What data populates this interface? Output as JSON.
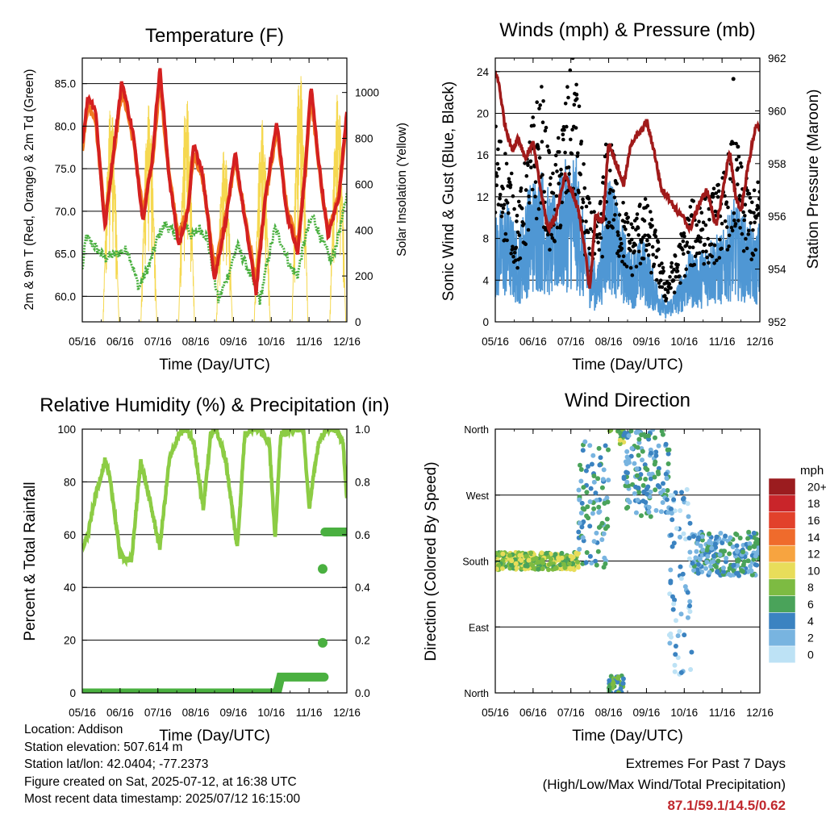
{
  "panels": {
    "temperature": {
      "title": "Temperature (F)",
      "ylabel_left": "2m & 9m T (Red, Orange) & 2m Td (Green)",
      "ylabel_right": "Solar Insolation (Yellow)",
      "xlabel": "Time (Day/UTC)",
      "yticks_left": [
        "60.0",
        "65.0",
        "70.0",
        "75.0",
        "80.0",
        "85.0"
      ],
      "yticks_right": [
        "0",
        "200",
        "400",
        "600",
        "800",
        "1000"
      ]
    },
    "winds": {
      "title": "Winds (mph) & Pressure (mb)",
      "ylabel_left": "Sonic Wind & Gust (Blue, Black)",
      "ylabel_right": "Station Pressure (Maroon)",
      "xlabel": "Time (Day/UTC)",
      "yticks_left": [
        "0",
        "4",
        "8",
        "12",
        "16",
        "20",
        "24"
      ],
      "yticks_right": [
        "952",
        "954",
        "956",
        "958",
        "960",
        "962"
      ]
    },
    "humidity": {
      "title": "Relative Humidity (%) & Precipitation (in)",
      "ylabel_left": "Percent & Total Rainfall",
      "xlabel": "Time (Day/UTC)",
      "yticks_left": [
        "0",
        "20",
        "40",
        "60",
        "80",
        "100"
      ],
      "yticks_right": [
        "0.0",
        "0.2",
        "0.4",
        "0.6",
        "0.8",
        "1.0"
      ]
    },
    "direction": {
      "title": "Wind Direction",
      "ylabel_left": "Direction (Colored By Speed)",
      "xlabel": "Time (Day/UTC)",
      "yticks_left": [
        "North",
        "East",
        "South",
        "West",
        "North"
      ],
      "legend_title": "mph",
      "legend_labels": [
        "20+",
        "18",
        "16",
        "14",
        "12",
        "10",
        "8",
        "6",
        "4",
        "2",
        "0"
      ],
      "legend_colors": [
        "#9b1c1f",
        "#c9252a",
        "#e2412b",
        "#ef6b2c",
        "#f7a440",
        "#e8dd5a",
        "#7dbb42",
        "#4aa35a",
        "#3b83c1",
        "#78b4e0",
        "#bde2f5"
      ]
    }
  },
  "xticks": [
    "05/16",
    "06/16",
    "07/16",
    "08/16",
    "09/16",
    "10/16",
    "11/16",
    "12/16"
  ],
  "colors": {
    "temp2m": "#d42020",
    "temp9m": "#f07a20",
    "dewpoint": "#4ab040",
    "solar": "#f5d850",
    "wind": "#4f97d4",
    "gust": "#000000",
    "pressure": "#a01a1a",
    "rh": "#8ccc44",
    "precip": "#4ab040",
    "extremes": "#c0282d"
  },
  "footer": {
    "location": "Location: Addison",
    "elevation": "Station elevation: 507.614 m",
    "latlon": "Station lat/lon: 42.0404; -77.2373",
    "created": "Figure created on Sat, 2025-07-12, at 16:38 UTC",
    "recent": "Most recent data timestamp: 2025/07/12 16:15:00",
    "extremes_title": "Extremes For Past 7 Days",
    "extremes_subtitle": "(High/Low/Max Wind/Total Precipitation)",
    "extremes_values": "87.1/59.1/14.5/0.62"
  },
  "chart_data": [
    {
      "type": "line",
      "title": "Temperature (F)",
      "xlabel": "Time (Day/UTC)",
      "x": [
        "05/16",
        "06/16",
        "07/16",
        "08/16",
        "09/16",
        "10/16",
        "11/16",
        "12/16"
      ],
      "ylim": [
        57.0,
        88.0
      ],
      "ylim_right": [
        0,
        1150
      ],
      "series": [
        {
          "name": "2m T",
          "axis": "left",
          "x": [
            0,
            0.15,
            0.35,
            0.6,
            0.85,
            1.05,
            1.35,
            1.6,
            1.85,
            2.05,
            2.3,
            2.55,
            2.8,
            2.95,
            3.2,
            3.5,
            3.8,
            4.05,
            4.3,
            4.6,
            4.85,
            5.15,
            5.4,
            5.7,
            5.9,
            6.05,
            6.25,
            6.5,
            6.8,
            7.0
          ],
          "values": [
            78,
            83.5,
            82,
            68,
            78,
            85.3,
            79,
            69,
            76,
            87,
            74,
            66,
            70,
            78,
            74,
            62,
            69,
            76.8,
            69,
            60.5,
            72,
            80.5,
            70,
            65,
            75,
            84.8,
            76,
            67,
            72,
            82
          ]
        },
        {
          "name": "9m T",
          "axis": "left",
          "x": [
            0,
            0.15,
            0.35,
            0.6,
            0.85,
            1.05,
            1.35,
            1.6,
            1.85,
            2.05,
            2.3,
            2.55,
            2.8,
            2.95,
            3.2,
            3.5,
            3.8,
            4.05,
            4.3,
            4.6,
            4.85,
            5.15,
            5.4,
            5.7,
            5.9,
            6.05,
            6.25,
            6.5,
            6.8,
            7.0
          ],
          "values": [
            77.5,
            82.5,
            81,
            69,
            77.5,
            84.5,
            78.5,
            70,
            75.5,
            85.5,
            74,
            67,
            70.5,
            77,
            73.5,
            63,
            69.5,
            76,
            69.5,
            61.5,
            71.5,
            79.5,
            70.5,
            66,
            74.5,
            84,
            75.5,
            67.5,
            72,
            81
          ]
        },
        {
          "name": "2m Td",
          "axis": "left",
          "x": [
            0,
            0.1,
            0.3,
            0.6,
            0.9,
            1.2,
            1.5,
            1.8,
            2.0,
            2.2,
            2.5,
            2.7,
            2.9,
            3.1,
            3.3,
            3.6,
            3.9,
            4.1,
            4.4,
            4.7,
            4.9,
            5.1,
            5.3,
            5.5,
            5.7,
            5.9,
            6.1,
            6.3,
            6.6,
            6.9,
            7.0
          ],
          "values": [
            63,
            67,
            66,
            64.5,
            65,
            65.5,
            61,
            64,
            67,
            68.5,
            67,
            69,
            67,
            68,
            67,
            59.5,
            63,
            66,
            63,
            59.5,
            64,
            68,
            66,
            63.5,
            62.5,
            67,
            69.5,
            67,
            64,
            69.5,
            72
          ]
        },
        {
          "name": "Solar Insolation",
          "axis": "right",
          "days": 7,
          "peaks": [
            950,
            950,
            980,
            760,
            880,
            1100,
            1000
          ]
        }
      ]
    },
    {
      "type": "line",
      "title": "Winds (mph) & Pressure (mb)",
      "xlabel": "Time (Day/UTC)",
      "x": [
        "05/16",
        "06/16",
        "07/16",
        "08/16",
        "09/16",
        "10/16",
        "11/16",
        "12/16"
      ],
      "ylim": [
        0,
        25.3
      ],
      "ylim_right": [
        952,
        962
      ],
      "series": [
        {
          "name": "Station Pressure",
          "axis": "right",
          "x": [
            0,
            0.1,
            0.25,
            0.45,
            0.6,
            0.8,
            1.0,
            1.2,
            1.4,
            1.6,
            1.85,
            2.0,
            2.2,
            2.35,
            2.5,
            2.65,
            2.85,
            3.0,
            3.2,
            3.4,
            3.6,
            3.85,
            4.0,
            4.2,
            4.4,
            4.55,
            4.8,
            4.95,
            5.15,
            5.4,
            5.6,
            5.85,
            6.05,
            6.2,
            6.35,
            6.5,
            6.7,
            6.9,
            7.0
          ],
          "values": [
            961.5,
            961,
            959.5,
            958.5,
            959,
            958.2,
            958.8,
            957,
            955.5,
            956,
            957.6,
            957,
            956.2,
            955,
            953.2,
            956,
            955.8,
            958.8,
            958,
            957.2,
            958.8,
            959.2,
            959.6,
            958.5,
            957,
            956.8,
            956.2,
            956,
            955.5,
            956.5,
            957,
            955.6,
            957.2,
            958.5,
            956.8,
            956.2,
            958,
            959.5,
            959.2
          ]
        },
        {
          "name": "Sonic Wind",
          "axis": "left",
          "x": [
            0,
            0.3,
            0.6,
            0.9,
            1.2,
            1.5,
            1.8,
            2.1,
            2.4,
            2.7,
            3.0,
            3.3,
            3.6,
            3.9,
            4.2,
            4.5,
            4.8,
            5.1,
            5.4,
            5.7,
            6.0,
            6.3,
            6.6,
            6.9,
            7.0
          ],
          "values": [
            6,
            7,
            5,
            8,
            9,
            7,
            9,
            10,
            5,
            3,
            9,
            6,
            4,
            5,
            3,
            1,
            2,
            4,
            4,
            5,
            5,
            7,
            6,
            5,
            6
          ]
        },
        {
          "name": "Gust",
          "axis": "left",
          "x": [
            0,
            0.3,
            0.6,
            0.9,
            1.2,
            1.5,
            1.8,
            2.1,
            2.4,
            2.7,
            3.0,
            3.3,
            3.6,
            3.9,
            4.2,
            4.5,
            4.8,
            5.1,
            5.4,
            5.7,
            6.0,
            6.3,
            6.6,
            6.9,
            7.0
          ],
          "values": [
            14,
            12,
            8,
            13,
            17,
            10,
            15,
            19,
            9,
            7,
            14,
            9,
            7,
            9,
            7,
            3,
            5,
            8,
            9,
            9,
            10,
            13,
            10,
            9,
            11
          ]
        }
      ]
    },
    {
      "type": "line",
      "title": "Relative Humidity (%) & Precipitation (in)",
      "xlabel": "Time (Day/UTC)",
      "x": [
        "05/16",
        "06/16",
        "07/16",
        "08/16",
        "09/16",
        "10/16",
        "11/16",
        "12/16"
      ],
      "ylim": [
        0,
        100
      ],
      "ylim_right": [
        0,
        1.0
      ],
      "series": [
        {
          "name": "RH",
          "axis": "left",
          "x": [
            0,
            0.15,
            0.35,
            0.6,
            0.75,
            1.0,
            1.3,
            1.55,
            1.8,
            2.05,
            2.3,
            2.55,
            2.75,
            2.95,
            3.2,
            3.4,
            3.55,
            3.8,
            4.1,
            4.3,
            4.45,
            4.7,
            4.95,
            5.1,
            5.25,
            5.55,
            5.7,
            5.85,
            6.0,
            6.25,
            6.45,
            6.7,
            6.9,
            7.0
          ],
          "values": [
            55,
            60,
            75,
            88,
            80,
            52,
            50,
            88,
            72,
            55,
            88,
            98,
            100,
            95,
            70,
            98,
            100,
            88,
            55,
            98,
            100,
            100,
            95,
            58,
            98,
            100,
            100,
            100,
            70,
            95,
            100,
            100,
            95,
            73
          ]
        },
        {
          "name": "Total Precipitation",
          "axis": "right",
          "x": [
            0,
            5.0,
            5.15,
            5.25,
            6.0,
            6.3,
            6.35,
            6.4,
            6.42,
            6.45,
            7.0
          ],
          "values": [
            0,
            0,
            0,
            0.06,
            0.06,
            0.06,
            0.19,
            0.47,
            0.6,
            0.61,
            0.61
          ]
        }
      ]
    },
    {
      "type": "scatter",
      "title": "Wind Direction",
      "ylabel": "Direction (Colored By Speed)",
      "xlabel": "Time (Day/UTC)",
      "x": [
        "05/16",
        "06/16",
        "07/16",
        "08/16",
        "09/16",
        "10/16",
        "11/16",
        "12/16"
      ],
      "ylim": [
        0,
        360
      ],
      "y_categories": [
        "North",
        "East",
        "South",
        "West",
        "North"
      ],
      "legend": "mph",
      "series": [
        {
          "name": "Wind Direction",
          "segments": [
            {
              "t": [
                0.0,
                2.2
              ],
              "dir": 180,
              "spread": 12,
              "speed": 8
            },
            {
              "t": [
                2.2,
                3.0
              ],
              "dir": 260,
              "spread": 90,
              "speed": 4
            },
            {
              "t": [
                3.0,
                3.4
              ],
              "dir": 10,
              "spread": 15,
              "speed": 6
            },
            {
              "t": [
                3.3,
                3.4
              ],
              "dir": 350,
              "spread": 10,
              "speed": 8
            },
            {
              "t": [
                3.4,
                4.6
              ],
              "dir": 300,
              "spread": 60,
              "speed": 4
            },
            {
              "t": [
                4.6,
                5.2
              ],
              "dir": 150,
              "spread": 130,
              "speed": 2
            },
            {
              "t": [
                5.2,
                7.0
              ],
              "dir": 190,
              "spread": 30,
              "speed": 4
            }
          ]
        }
      ]
    }
  ]
}
